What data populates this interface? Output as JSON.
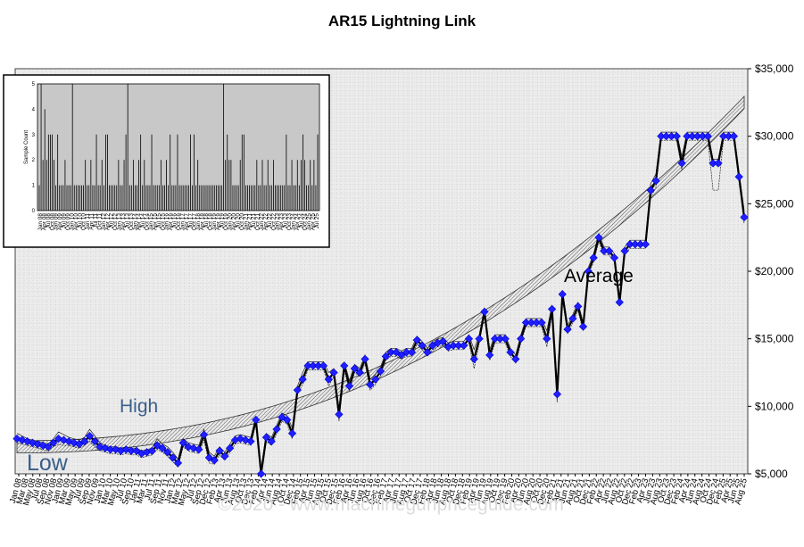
{
  "chart_data": {
    "type": "line",
    "title": "AR15 Lightning Link",
    "watermark": "©2020 - www.machinegunpriceguide.com",
    "annotations": {
      "high": "High",
      "low": "Low",
      "average": "Average"
    },
    "y_tick_labels": [
      "$5,000",
      "$10,000",
      "$15,000",
      "$20,000",
      "$25,000",
      "$30,000",
      "$35,000"
    ],
    "ylim": [
      5000,
      35000
    ],
    "grid": true,
    "x_tick_labels": [
      "Jan 08",
      "Mar 08",
      "May 08",
      "Jul 08",
      "Sep 08",
      "Nov 08",
      "Jan 09",
      "Mar 09",
      "May 09",
      "Jul 09",
      "Sep 09",
      "Nov 09",
      "Jan 10",
      "Mar 10",
      "May 10",
      "Jul 10",
      "Sep 10",
      "Jan 11",
      "Mar 11",
      "Jul 11",
      "Sep 11",
      "Nov 11",
      "Jan 12",
      "Mar 12",
      "May 12",
      "Jul 12",
      "Sep 12",
      "Dec 12",
      "Feb 13",
      "Apr 13",
      "Jun 13",
      "Aug 13",
      "Oct 13",
      "Dec 13",
      "Feb 14",
      "Apr 14",
      "Jun 14",
      "Aug 14",
      "Oct 14",
      "Dec 14",
      "Feb 15",
      "Apr 15",
      "Jun 15",
      "Aug 15",
      "Oct 15",
      "Dec 15",
      "Feb 16",
      "Apr 16",
      "Jun 16",
      "Aug 16",
      "Oct 16",
      "Dec 16",
      "Feb 17",
      "Apr 17",
      "Jun 17",
      "Aug 17",
      "Oct 17",
      "Dec 17",
      "Feb 18",
      "Apr 18",
      "Jun 18",
      "Aug 18",
      "Oct 18",
      "Dec 18",
      "Feb 19",
      "Apr 19",
      "Jun 19",
      "Aug 19",
      "Oct 19",
      "Dec 19",
      "Feb 20",
      "Apr 20",
      "Jun 20",
      "Aug 20",
      "Oct 20",
      "Dec 20",
      "Feb 21",
      "Apr 21",
      "Jun 21",
      "Aug 21",
      "Oct 21",
      "Dec 21",
      "Feb 22",
      "Apr 22",
      "Jun 22",
      "Aug 22",
      "Oct 22",
      "Dec 22",
      "Feb 23",
      "Apr 23",
      "Jun 23",
      "Aug 23",
      "Oct 23",
      "Dec 23",
      "Feb 24",
      "Apr 24",
      "Jun 24",
      "Aug 24",
      "Oct 24",
      "Dec 24",
      "Feb 25",
      "Apr 25",
      "Jun 25",
      "Aug 25"
    ],
    "series": [
      {
        "role": "average",
        "values": [
          7600,
          7500,
          7400,
          7300,
          7200,
          7100,
          7000,
          7300,
          7600,
          7500,
          7400,
          7300,
          7200,
          7400,
          7800,
          7400,
          7000,
          6900,
          6800,
          6800,
          6700,
          6800,
          6700,
          6700,
          6500,
          6600,
          6700,
          7100,
          6900,
          6600,
          6200,
          5800,
          7300,
          7000,
          6900,
          6800,
          7900,
          6200,
          6000,
          6700,
          6300,
          6900,
          7500,
          7600,
          7500,
          7400,
          9000,
          5000,
          7700,
          7400,
          8300,
          9200,
          9000,
          8000,
          11200,
          12000,
          13000,
          13000,
          13000,
          13000,
          12000,
          12500,
          9400,
          13000,
          11500,
          12800,
          12500,
          13500,
          11600,
          12000,
          12600,
          13700,
          14000,
          14000,
          13800,
          14000,
          14000,
          14900,
          14500,
          14000,
          14500,
          14700,
          14800,
          14400,
          14500,
          14500,
          14500,
          15000,
          13500,
          15000,
          17000,
          13800,
          15000,
          15000,
          15000,
          14000,
          13500,
          15000,
          16200,
          16200,
          16200,
          16200,
          15000,
          17200,
          10900,
          18300,
          15700,
          16500,
          17400,
          15900,
          20000,
          21000,
          22500,
          21500,
          21500,
          21000,
          17700,
          21500,
          22000,
          22000,
          22000,
          22000,
          26000,
          26700,
          30000,
          30000,
          30000,
          30000,
          28000,
          30000,
          30000,
          30000,
          30000,
          30000,
          28000,
          28000,
          30000,
          30000,
          30000,
          27000,
          24000
        ]
      },
      {
        "role": "high",
        "values": [
          8000,
          7800,
          7600,
          7500,
          7400,
          7300,
          7200,
          7600,
          8100,
          7900,
          7700,
          7600,
          7500,
          7700,
          8300,
          7800,
          7300,
          7100,
          7000,
          7000,
          6900,
          7000,
          6900,
          6900,
          6700,
          6800,
          6900,
          7600,
          7200,
          7000,
          6600,
          6100,
          7600,
          7300,
          7200,
          7100,
          8300,
          6600,
          6300,
          7000,
          6600,
          7200,
          7800,
          7900,
          7800,
          7700,
          9300,
          5400,
          8000,
          7700,
          8600,
          9500,
          9300,
          8400,
          11500,
          12500,
          13300,
          13300,
          13300,
          13300,
          12500,
          12800,
          9900,
          13300,
          11900,
          13100,
          12800,
          13800,
          12000,
          12400,
          12900,
          14000,
          14300,
          14300,
          14100,
          14300,
          14300,
          15200,
          14800,
          14300,
          14800,
          15000,
          15100,
          14700,
          14800,
          14800,
          14800,
          15300,
          14200,
          15300,
          17300,
          14200,
          15300,
          15300,
          15300,
          14300,
          13800,
          15300,
          16500,
          16500,
          16500,
          16500,
          15600,
          17500,
          11500,
          18600,
          16000,
          16800,
          17700,
          16200,
          20300,
          21300,
          22800,
          21800,
          21800,
          21300,
          18000,
          21800,
          22300,
          22300,
          22300,
          22300,
          26500,
          27200,
          30300,
          30300,
          30300,
          30300,
          28500,
          30300,
          30300,
          30300,
          30300,
          30300,
          28300,
          28300,
          30300,
          30300,
          30300,
          27300,
          24500
        ]
      },
      {
        "role": "low",
        "values": [
          7300,
          7200,
          7100,
          7000,
          6900,
          6800,
          6700,
          7000,
          7200,
          7100,
          7100,
          7000,
          6900,
          7100,
          7400,
          7000,
          6700,
          6600,
          6500,
          6500,
          6400,
          6500,
          6400,
          6400,
          6200,
          6300,
          6400,
          6800,
          6600,
          6300,
          5900,
          5500,
          7000,
          6700,
          6600,
          6500,
          7500,
          5800,
          5700,
          6400,
          6000,
          6600,
          7200,
          7300,
          7200,
          7100,
          8700,
          4900,
          7400,
          7100,
          8000,
          8900,
          8700,
          7600,
          10900,
          11600,
          12700,
          12700,
          12700,
          12700,
          11500,
          12200,
          8900,
          12700,
          11100,
          12500,
          12200,
          13200,
          11200,
          11600,
          12300,
          13400,
          13700,
          13700,
          13500,
          13700,
          13700,
          14600,
          14200,
          13700,
          14200,
          14400,
          14500,
          14100,
          14200,
          14200,
          14200,
          14700,
          12800,
          14700,
          16700,
          13400,
          14700,
          14700,
          14700,
          13700,
          13200,
          14700,
          15900,
          15900,
          15900,
          15900,
          14400,
          16900,
          10300,
          18000,
          15400,
          16200,
          17100,
          15600,
          19700,
          20700,
          22200,
          21200,
          21200,
          20700,
          17400,
          21200,
          21700,
          21700,
          21700,
          21700,
          25500,
          26200,
          29700,
          29700,
          29700,
          29700,
          27500,
          29700,
          29700,
          29700,
          29700,
          29700,
          26000,
          26000,
          29700,
          29700,
          29700,
          26700,
          23500
        ]
      }
    ],
    "trend": {
      "description_visible": false,
      "start": 7000,
      "end": 32500
    },
    "inset": {
      "ylabel": "Sample Count",
      "y_tick_labels": [
        "0",
        "1",
        "2",
        "3",
        "4",
        "5"
      ],
      "ylim": [
        0,
        5
      ],
      "x_tick_labels": [
        "Jan 08",
        "Apr 08",
        "Jul 08",
        "Oct 08",
        "Jan 09",
        "Apr 09",
        "Jul 09",
        "Oct 09",
        "Jan 10",
        "Apr 10",
        "Jul 10",
        "Oct 10",
        "Jan 11",
        "Apr 11",
        "Jul 11",
        "Oct 11",
        "Jan 12",
        "Apr 12",
        "Jul 12",
        "Oct 12",
        "Jan 13",
        "Apr 13",
        "Jul 13",
        "Oct 13",
        "Jan 14",
        "Apr 14",
        "Jul 14",
        "Oct 14",
        "Jan 15",
        "Apr 15",
        "Jul 15",
        "Oct 15",
        "Jan 16",
        "Apr 16",
        "Jul 16",
        "Oct 16",
        "Jan 17",
        "Apr 17",
        "Jul 17",
        "Oct 17",
        "Jan 18",
        "Apr 18",
        "Jul 18",
        "Oct 18",
        "Jan 19",
        "Apr 19",
        "Jul 19",
        "Oct 19",
        "Jan 20",
        "Apr 20",
        "Jul 20",
        "Oct 20",
        "Jan 21",
        "Apr 21",
        "Jul 21",
        "Oct 21",
        "Jan 22",
        "Apr 22",
        "Jul 22",
        "Oct 22",
        "Jan 23",
        "Apr 23",
        "Jul 23",
        "Oct 23",
        "Jan 24",
        "Apr 24",
        "Jul 24",
        "Oct 24",
        "Jan 25",
        "Apr 25",
        "Jul 25"
      ],
      "counts": [
        1,
        5,
        2,
        4,
        2,
        3,
        3,
        3,
        2,
        1,
        3,
        1,
        1,
        1,
        2,
        1,
        1,
        1,
        5,
        1,
        1,
        1,
        1,
        1,
        1,
        2,
        1,
        1,
        2,
        1,
        1,
        3,
        1,
        1,
        2,
        1,
        3,
        3,
        1,
        1,
        1,
        1,
        1,
        2,
        1,
        1,
        2,
        3,
        5,
        1,
        1,
        2,
        1,
        1,
        2,
        3,
        1,
        2,
        1,
        1,
        1,
        3,
        1,
        1,
        1,
        1,
        2,
        1,
        1,
        2,
        1,
        3,
        1,
        1,
        1,
        3,
        1,
        1,
        1,
        1,
        1,
        1,
        3,
        1,
        3,
        1,
        2,
        1,
        1,
        1,
        1,
        1,
        1,
        1,
        1,
        1,
        1,
        1,
        1,
        1,
        5,
        2,
        3,
        2,
        2,
        1,
        1,
        1,
        1,
        2,
        3,
        3,
        1,
        1,
        1,
        1,
        1,
        1,
        2,
        1,
        1,
        2,
        1,
        1,
        2,
        1,
        1,
        2,
        1,
        1,
        1,
        1,
        1,
        1,
        3,
        1,
        1,
        2,
        1,
        1,
        2,
        1,
        2,
        3,
        2,
        1,
        1,
        2,
        1,
        2,
        1,
        3
      ]
    }
  }
}
